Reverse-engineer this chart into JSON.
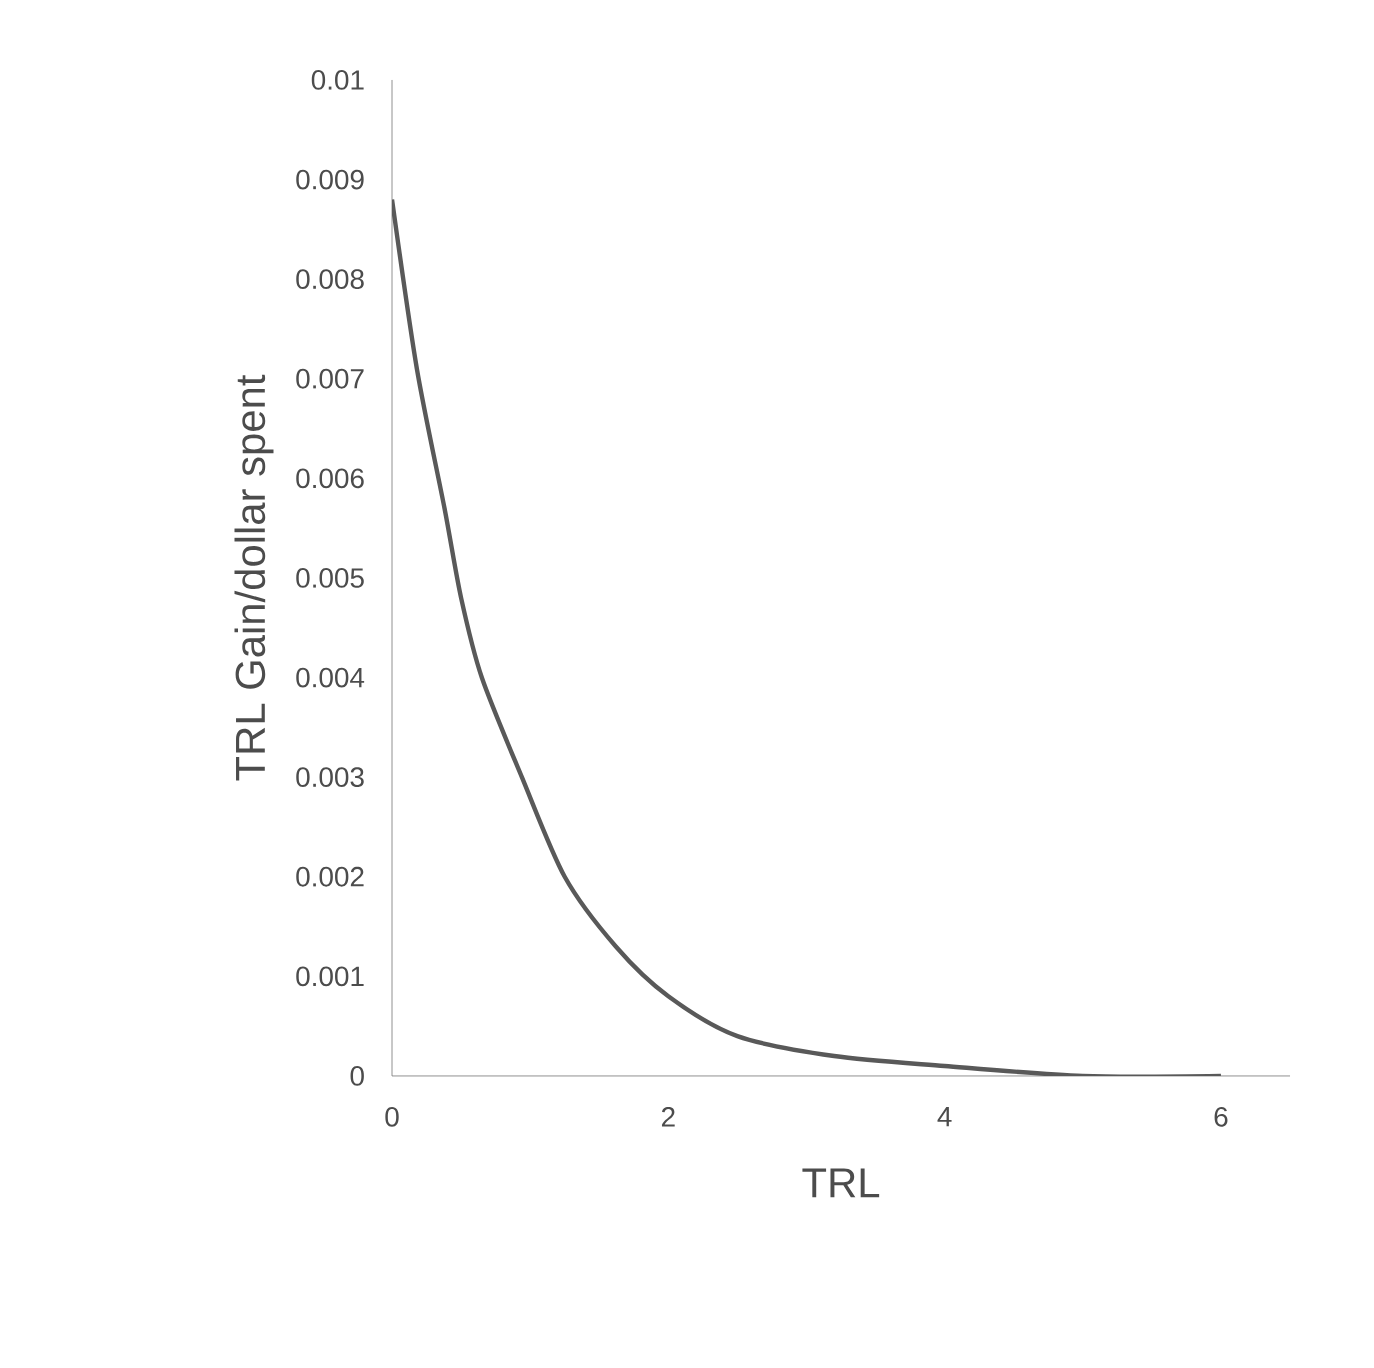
{
  "chart_data": {
    "type": "line",
    "xlabel": "TRL",
    "ylabel": "TRL Gain/dollar spent",
    "x": [
      0,
      0.18,
      0.38,
      0.5,
      0.65,
      0.94,
      1.25,
      1.62,
      2.0,
      2.5,
      3.2,
      4.0,
      5,
      6
    ],
    "series": [
      {
        "color": "#595959",
        "values": [
          0.0088,
          0.0071,
          0.0057,
          0.0048,
          0.004,
          0.003,
          0.002,
          0.0013,
          0.0008,
          0.0004,
          0.0002,
          0.0001,
          0,
          0
        ]
      }
    ],
    "xlim": [
      0,
      6.5
    ],
    "ylim": [
      0,
      0.01
    ],
    "xticks": [
      0,
      2,
      4,
      6
    ],
    "yticks": [
      0,
      0.001,
      0.002,
      0.003,
      0.004,
      0.005,
      0.006,
      0.007,
      0.008,
      0.009,
      0.01
    ],
    "marker": "none",
    "line_style": "solid"
  }
}
